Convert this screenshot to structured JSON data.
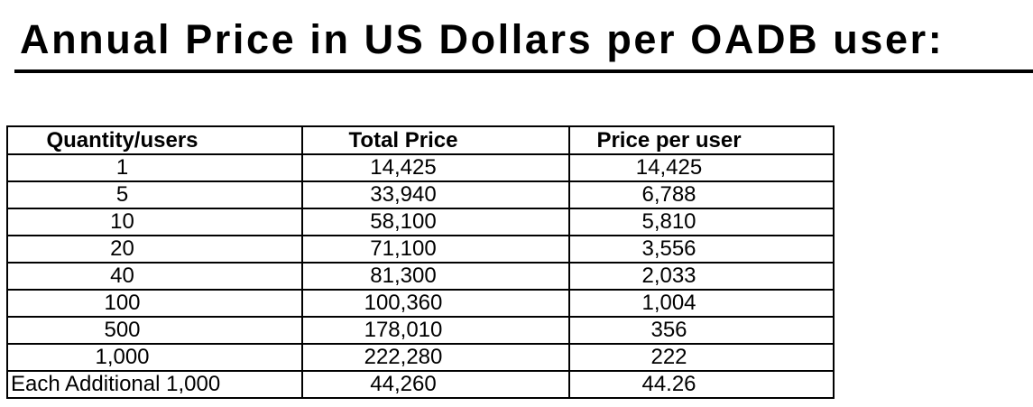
{
  "colors": {
    "background": "#ffffff",
    "text": "#000000",
    "table_border": "#000000",
    "title_rule": "#000000"
  },
  "title": "Annual Price in US Dollars per OADB user:",
  "table": {
    "columns": [
      "Quantity/users",
      "Total Price",
      "Price per user"
    ],
    "rows": [
      [
        "1",
        "14,425",
        "14,425"
      ],
      [
        "5",
        "33,940",
        "6,788"
      ],
      [
        "10",
        "58,100",
        "5,810"
      ],
      [
        "20",
        "71,100",
        "3,556"
      ],
      [
        "40",
        "81,300",
        "2,033"
      ],
      [
        "100",
        "100,360",
        "1,004"
      ],
      [
        "500",
        "178,010",
        "356"
      ],
      [
        "1,000",
        "222,280",
        "222"
      ],
      [
        "Each Additional 1,000",
        "44,260",
        "44.26"
      ]
    ]
  }
}
